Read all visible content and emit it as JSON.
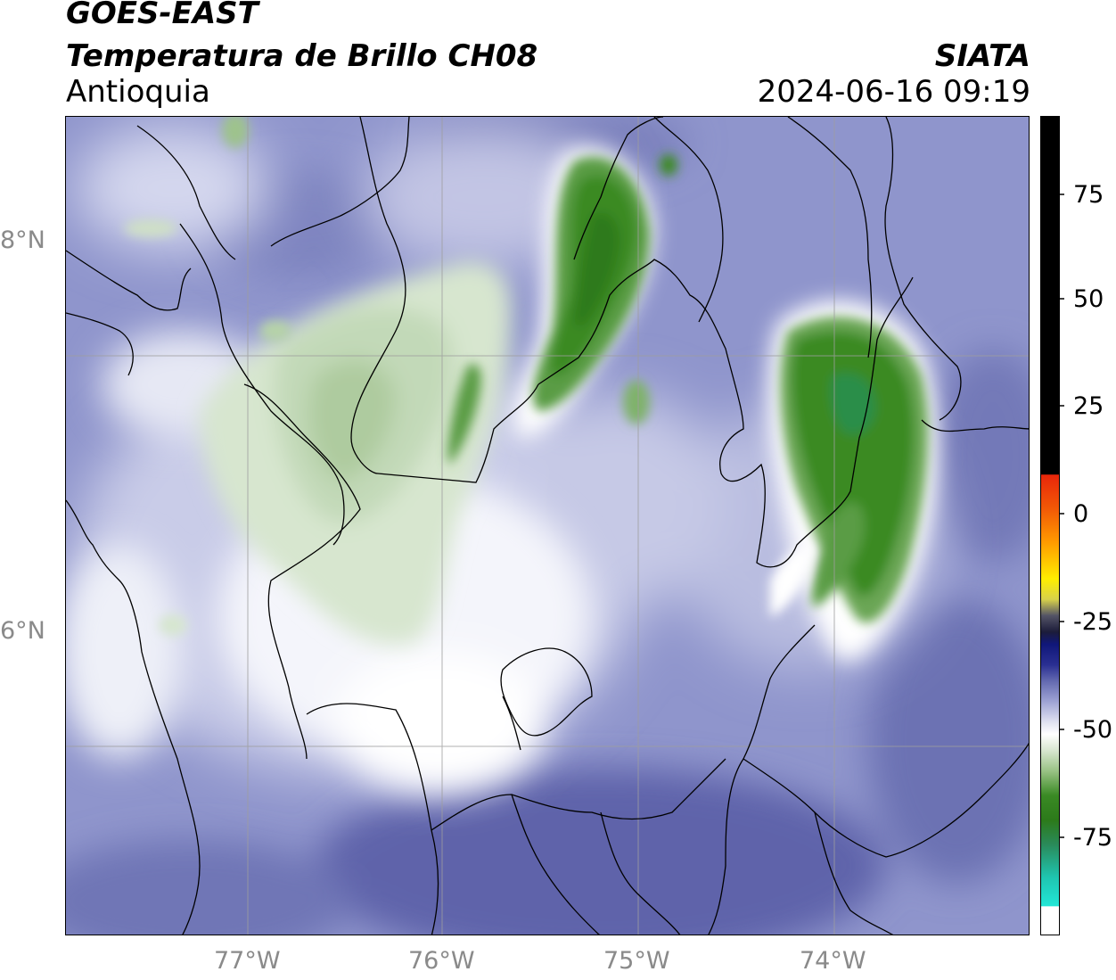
{
  "header": {
    "line1": "GOES-EAST",
    "line2": "Temperatura de Brillo CH08",
    "region": "Antioquia",
    "organization": "SIATA",
    "datetime": "2024-06-16 09:19"
  },
  "map": {
    "lat_labels": [
      "8°N",
      "6°N"
    ],
    "lon_labels": [
      "77°W",
      "76°W",
      "75°W",
      "74°W"
    ]
  },
  "colorbar": {
    "ticks": [
      "75",
      "50",
      "25",
      "0",
      "-25",
      "-50",
      "-75"
    ],
    "colors": {
      "warm_black": "#000000",
      "red": "#e8260a",
      "orange": "#ff9a00",
      "yellow": "#ffee00",
      "dark_navy": "#10177a",
      "lavender": "#b9bee0",
      "white": "#ffffff",
      "green": "#3a8a24",
      "cyan": "#22e6d6"
    }
  }
}
